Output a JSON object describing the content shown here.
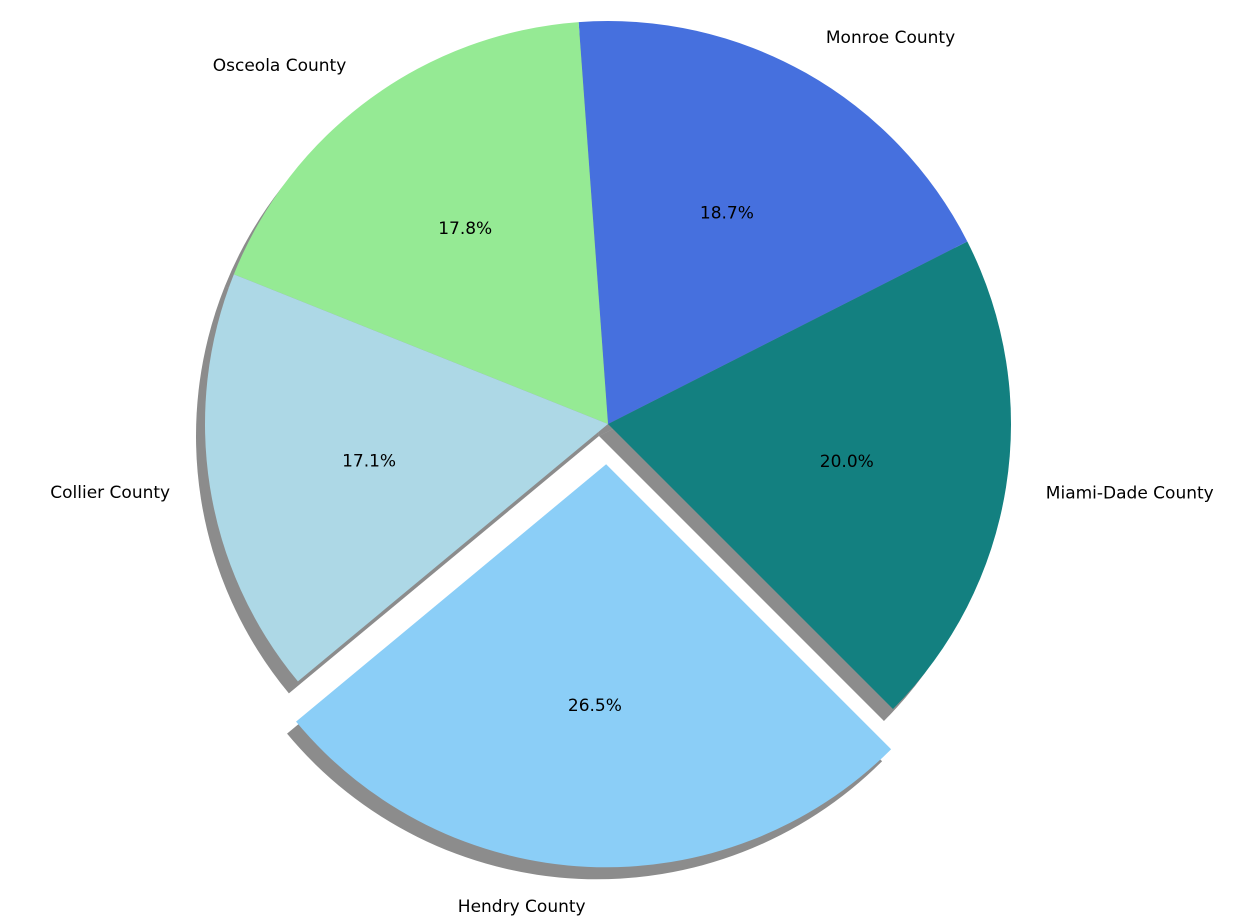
{
  "chart_data": {
    "type": "pie",
    "categories": [
      "Miami-Dade County",
      "Monroe County",
      "Osceola County",
      "Collier County",
      "Hendry County"
    ],
    "values": [
      20.0,
      18.7,
      17.8,
      17.1,
      26.5
    ],
    "percent_labels": [
      "20.0%",
      "18.7%",
      "17.8%",
      "17.1%",
      "26.5%"
    ],
    "colors": [
      "#138080",
      "#4670de",
      "#95ea94",
      "#add8e6",
      "#8bcef7"
    ],
    "exploded": [
      false,
      false,
      false,
      false,
      true
    ],
    "shadow": true,
    "start_angle_deg": -45,
    "direction": "counterclockwise",
    "title": "",
    "legend": "none"
  }
}
